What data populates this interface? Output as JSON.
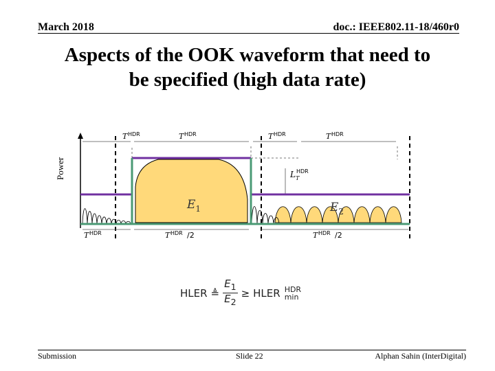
{
  "header": {
    "date": "March 2018",
    "doc_id": "doc.: IEEE802.11-18/460r0"
  },
  "title_line1": "Aspects of the OOK waveform that need to",
  "title_line2": "be specified (high data rate)",
  "diagram": {
    "y_axis_label": "Power",
    "energy_labels": [
      "E1",
      "E2"
    ],
    "interval_labels_top": [
      "T^HDR",
      "T^HDR",
      "T^HDR",
      "T^HDR"
    ],
    "interval_labels_bottom": [
      "T^HDR",
      "T^HDR/2",
      "T^HDR/2"
    ],
    "level_label": "L_T^HDR",
    "colors": {
      "level": "#7030a0",
      "envelope": "#4a9a74",
      "fill": "#ffd97a"
    }
  },
  "formula": {
    "lhs": "HLER",
    "defeq": "≜",
    "num": "E",
    "num_sub": "1",
    "den": "E",
    "den_sub": "2",
    "geq": "≥",
    "rhs": "HLER",
    "rhs_sup": "HDR",
    "rhs_sub": "min"
  },
  "footer": {
    "left": "Submission",
    "center": "Slide 22",
    "right": "Alphan Sahin (InterDigital)"
  }
}
